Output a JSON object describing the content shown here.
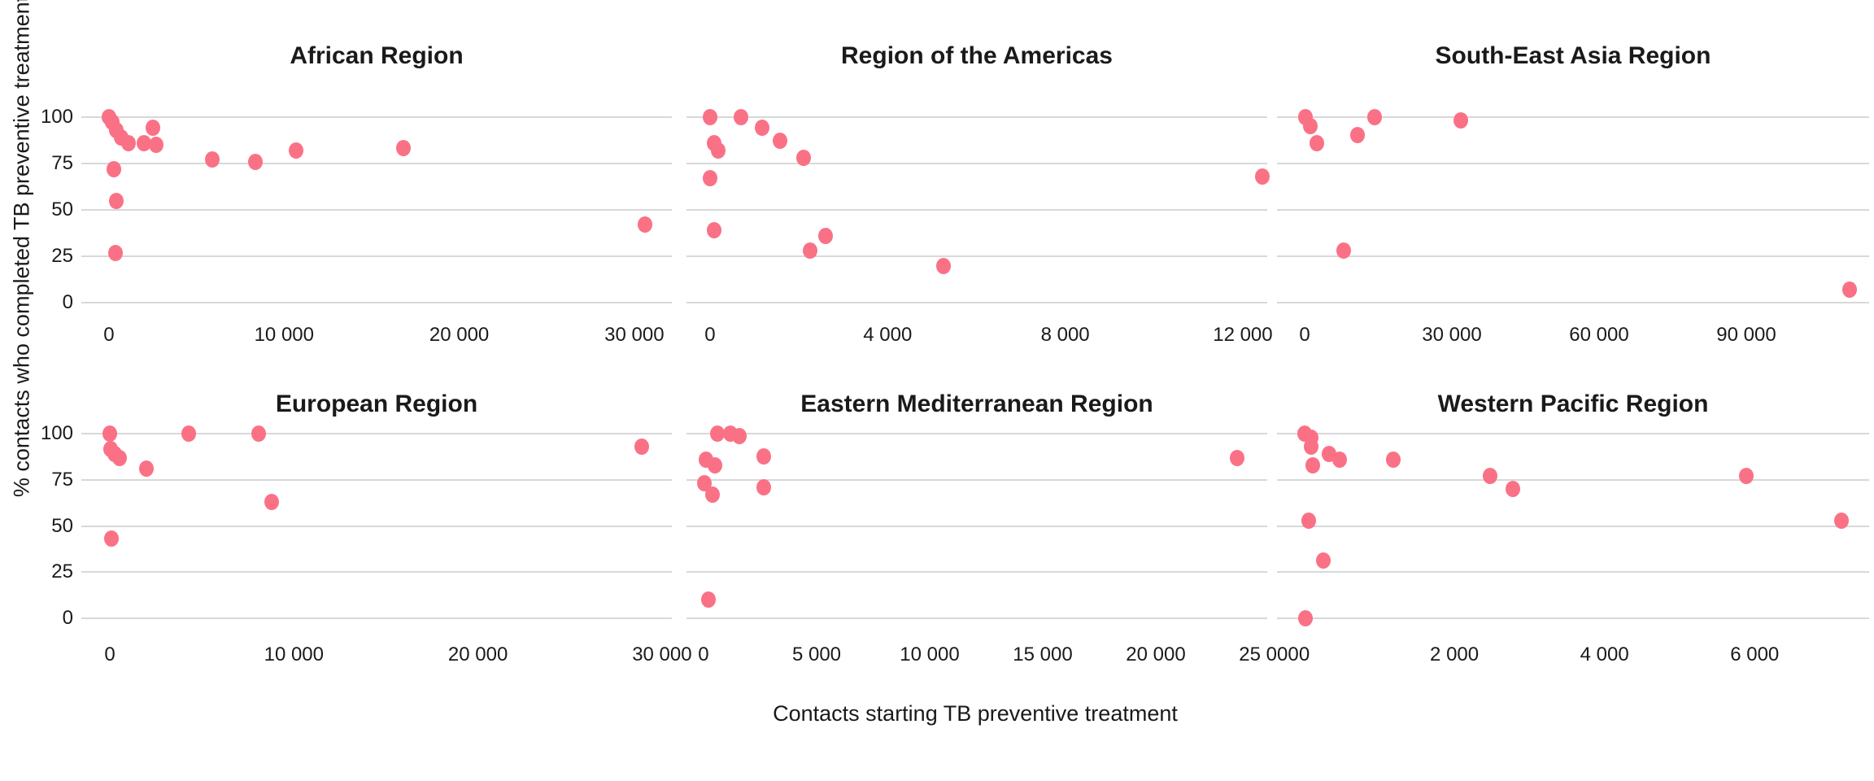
{
  "figure": {
    "y_axis_label": "% contacts who completed TB preventive treatment",
    "x_axis_label": "Contacts starting TB preventive treatment",
    "point_color": "#FA7186",
    "gridline_color": "#D8D8D8",
    "text_color": "#1A1A1A",
    "y_ticks": [
      {
        "v": 100,
        "label": "100"
      },
      {
        "v": 75,
        "label": "75"
      },
      {
        "v": 50,
        "label": "50"
      },
      {
        "v": 25,
        "label": "25"
      },
      {
        "v": 0,
        "label": "0"
      }
    ],
    "ylim": [
      -5.5,
      105.5
    ]
  },
  "chart_data": [
    {
      "type": "scatter",
      "row": 0,
      "col": 0,
      "title": "African Region",
      "xlabel": "",
      "ylabel": "",
      "xlim": [
        -1579,
        32142
      ],
      "x_ticks": [
        {
          "v": 0,
          "label": "0"
        },
        {
          "v": 10000,
          "label": "10 000"
        },
        {
          "v": 20000,
          "label": "20 000"
        },
        {
          "v": 30000,
          "label": "30 000"
        }
      ],
      "points": [
        [
          0,
          100
        ],
        [
          200,
          97
        ],
        [
          400,
          93
        ],
        [
          700,
          89
        ],
        [
          1100,
          86
        ],
        [
          2000,
          86
        ],
        [
          2500,
          94
        ],
        [
          2700,
          85
        ],
        [
          300,
          72
        ],
        [
          400,
          55
        ],
        [
          350,
          27
        ],
        [
          5900,
          77
        ],
        [
          8350,
          76
        ],
        [
          10700,
          82
        ],
        [
          16800,
          83
        ],
        [
          30600,
          42
        ]
      ]
    },
    {
      "type": "scatter",
      "row": 0,
      "col": 1,
      "title": "Region of the Americas",
      "xlabel": "",
      "ylabel": "",
      "xlim": [
        -531,
        12551
      ],
      "x_ticks": [
        {
          "v": 0,
          "label": "0"
        },
        {
          "v": 4000,
          "label": "4 000"
        },
        {
          "v": 8000,
          "label": "8 000"
        },
        {
          "v": 12000,
          "label": "12 000"
        }
      ],
      "points": [
        [
          0,
          100
        ],
        [
          700,
          100
        ],
        [
          1170,
          94
        ],
        [
          1580,
          87
        ],
        [
          2100,
          78
        ],
        [
          100,
          86
        ],
        [
          180,
          82
        ],
        [
          0,
          67
        ],
        [
          100,
          39
        ],
        [
          2250,
          28
        ],
        [
          2600,
          36
        ],
        [
          5250,
          20
        ],
        [
          12450,
          68
        ]
      ]
    },
    {
      "type": "scatter",
      "row": 0,
      "col": 2,
      "title": "South-East Asia Region",
      "xlabel": "",
      "ylabel": "",
      "xlim": [
        -5636,
        115033
      ],
      "x_ticks": [
        {
          "v": 0,
          "label": "0"
        },
        {
          "v": 30000,
          "label": "30 000"
        },
        {
          "v": 60000,
          "label": "60 000"
        },
        {
          "v": 90000,
          "label": "90 000"
        }
      ],
      "points": [
        [
          200,
          100
        ],
        [
          1200,
          95
        ],
        [
          2500,
          86
        ],
        [
          10700,
          90
        ],
        [
          14300,
          100
        ],
        [
          31900,
          98
        ],
        [
          8000,
          28
        ],
        [
          111000,
          7
        ]
      ]
    },
    {
      "type": "scatter",
      "row": 1,
      "col": 0,
      "title": "European Region",
      "xlabel": "",
      "ylabel": "",
      "xlim": [
        -1547,
        30535
      ],
      "x_ticks": [
        {
          "v": 0,
          "label": "0"
        },
        {
          "v": 10000,
          "label": "10 000"
        },
        {
          "v": 20000,
          "label": "20 000"
        },
        {
          "v": 30000,
          "label": "30 000"
        }
      ],
      "points": [
        [
          0,
          100
        ],
        [
          50,
          92
        ],
        [
          250,
          89
        ],
        [
          550,
          87
        ],
        [
          2000,
          81
        ],
        [
          4300,
          100
        ],
        [
          8100,
          100
        ],
        [
          8800,
          63
        ],
        [
          80,
          43
        ],
        [
          28900,
          93
        ]
      ]
    },
    {
      "type": "scatter",
      "row": 1,
      "col": 1,
      "title": "Eastern Mediterranean Region",
      "xlabel": "",
      "ylabel": "",
      "xlim": [
        -755,
        24928
      ],
      "x_ticks": [
        {
          "v": 0,
          "label": "0"
        },
        {
          "v": 5000,
          "label": "5 000"
        },
        {
          "v": 10000,
          "label": "10 000"
        },
        {
          "v": 15000,
          "label": "15 000"
        },
        {
          "v": 20000,
          "label": "20 000"
        },
        {
          "v": 25000,
          "label": "25 000"
        }
      ],
      "points": [
        [
          600,
          100
        ],
        [
          1200,
          100
        ],
        [
          1600,
          99
        ],
        [
          100,
          86
        ],
        [
          500,
          83
        ],
        [
          50,
          73
        ],
        [
          400,
          67
        ],
        [
          2650,
          88
        ],
        [
          2650,
          71
        ],
        [
          215,
          10
        ],
        [
          23600,
          87
        ]
      ]
    },
    {
      "type": "scatter",
      "row": 1,
      "col": 2,
      "title": "Western Pacific Region",
      "xlabel": "",
      "ylabel": "",
      "xlim": [
        -363,
        7525
      ],
      "x_ticks": [
        {
          "v": 0,
          "label": "0"
        },
        {
          "v": 2000,
          "label": "2 000"
        },
        {
          "v": 4000,
          "label": "4 000"
        },
        {
          "v": 6000,
          "label": "6 000"
        }
      ],
      "points": [
        [
          0,
          100
        ],
        [
          90,
          98
        ],
        [
          90,
          93
        ],
        [
          110,
          83
        ],
        [
          330,
          89
        ],
        [
          470,
          86
        ],
        [
          1190,
          86
        ],
        [
          2480,
          77
        ],
        [
          2780,
          70
        ],
        [
          5890,
          77
        ],
        [
          7160,
          53
        ],
        [
          60,
          53
        ],
        [
          250,
          31
        ],
        [
          20,
          0
        ]
      ]
    }
  ]
}
